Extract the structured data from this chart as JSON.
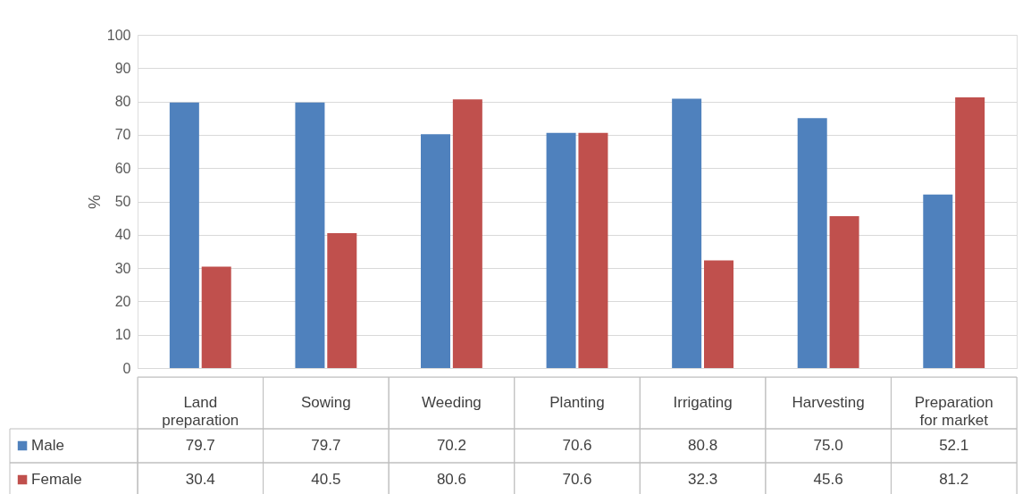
{
  "chart_data": {
    "type": "bar",
    "ylabel": "%",
    "categories": [
      "Land preparation",
      "Sowing",
      "Weeding",
      "Planting",
      "Irrigating",
      "Harvesting",
      "Preparation for market"
    ],
    "series": [
      {
        "name": "Male",
        "color": "#4f81bd",
        "values": [
          79.7,
          79.7,
          70.2,
          70.6,
          80.8,
          75.0,
          52.1
        ],
        "value_labels": [
          "79.7",
          "79.7",
          "70.2",
          "70.6",
          "80.8",
          "75.0",
          "52.1"
        ]
      },
      {
        "name": "Female",
        "color": "#c0504d",
        "values": [
          30.4,
          40.5,
          80.6,
          70.6,
          32.3,
          45.6,
          81.2
        ],
        "value_labels": [
          "30.4",
          "40.5",
          "80.6",
          "70.6",
          "32.3",
          "45.6",
          "81.2"
        ]
      }
    ],
    "ylim": [
      0,
      100
    ],
    "yticks": [
      0,
      10,
      20,
      30,
      40,
      50,
      60,
      70,
      80,
      90,
      100
    ],
    "grid": "y",
    "legend": "bottom left"
  }
}
